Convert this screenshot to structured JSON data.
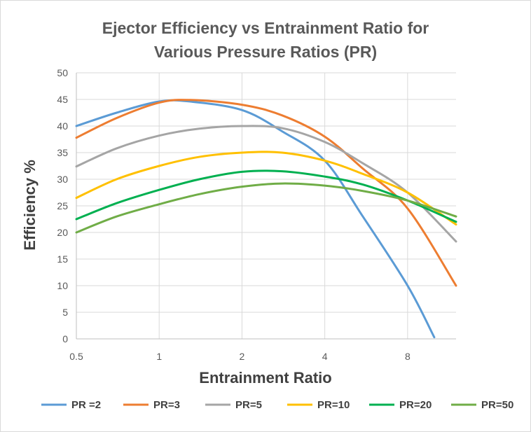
{
  "chart_data": {
    "type": "line",
    "title_lines": [
      "Ejector Efficiency vs Entrainment Ratio for",
      "Various Pressure Ratios (PR)"
    ],
    "xlabel": "Entrainment Ratio",
    "ylabel": "Efficiency %",
    "x_scale": "log2",
    "xlim": [
      0.5,
      12
    ],
    "ylim": [
      0,
      50
    ],
    "x_ticks": [
      0.5,
      1,
      2,
      4,
      8
    ],
    "x_tick_labels": [
      "0.5",
      "1",
      "2",
      "4",
      "8"
    ],
    "y_ticks": [
      0,
      5,
      10,
      15,
      20,
      25,
      30,
      35,
      40,
      45,
      50
    ],
    "y_tick_labels": [
      "0",
      "5",
      "10",
      "15",
      "20",
      "25",
      "30",
      "35",
      "40",
      "45",
      "50"
    ],
    "grid": "vertical and horizontal",
    "legend_position": "bottom",
    "series": [
      {
        "name": "PR =2",
        "color": "#5b9bd5",
        "x": [
          0.5,
          0.7,
          1.0,
          1.3,
          2.0,
          2.8,
          4.0,
          5.5,
          8.0,
          10.0
        ],
        "y": [
          40.0,
          42.5,
          44.6,
          44.6,
          43.0,
          39.0,
          33.5,
          23.0,
          10.0,
          0.3
        ]
      },
      {
        "name": "PR=3",
        "color": "#ed7d31",
        "x": [
          0.5,
          0.7,
          1.0,
          1.3,
          2.0,
          2.8,
          4.0,
          5.5,
          8.0,
          12.0
        ],
        "y": [
          37.8,
          41.5,
          44.4,
          44.9,
          44.0,
          42.0,
          38.0,
          32.0,
          24.5,
          10.0
        ]
      },
      {
        "name": "PR=5",
        "color": "#a5a5a5",
        "x": [
          0.5,
          0.7,
          1.0,
          1.4,
          2.0,
          2.8,
          4.0,
          5.5,
          8.0,
          12.0
        ],
        "y": [
          32.4,
          35.8,
          38.2,
          39.5,
          40.0,
          39.6,
          37.0,
          33.0,
          27.5,
          18.3
        ]
      },
      {
        "name": "PR=10",
        "color": "#ffc000",
        "x": [
          0.5,
          0.7,
          1.0,
          1.4,
          2.0,
          2.8,
          4.0,
          5.5,
          8.0,
          12.0
        ],
        "y": [
          26.5,
          30.0,
          32.5,
          34.2,
          35.0,
          35.0,
          33.5,
          31.0,
          27.5,
          21.5
        ]
      },
      {
        "name": "PR=20",
        "color": "#00b050",
        "x": [
          0.5,
          0.7,
          1.0,
          1.4,
          2.0,
          2.8,
          4.0,
          5.5,
          8.0,
          12.0
        ],
        "y": [
          22.5,
          25.5,
          28.0,
          30.0,
          31.4,
          31.5,
          30.5,
          29.0,
          26.0,
          22.0
        ]
      },
      {
        "name": "PR=50",
        "color": "#70ad47",
        "x": [
          0.5,
          0.7,
          1.0,
          1.4,
          2.0,
          2.8,
          4.0,
          5.5,
          8.0,
          12.0
        ],
        "y": [
          20.0,
          23.0,
          25.3,
          27.2,
          28.6,
          29.2,
          28.8,
          27.8,
          26.0,
          23.0
        ]
      }
    ]
  }
}
